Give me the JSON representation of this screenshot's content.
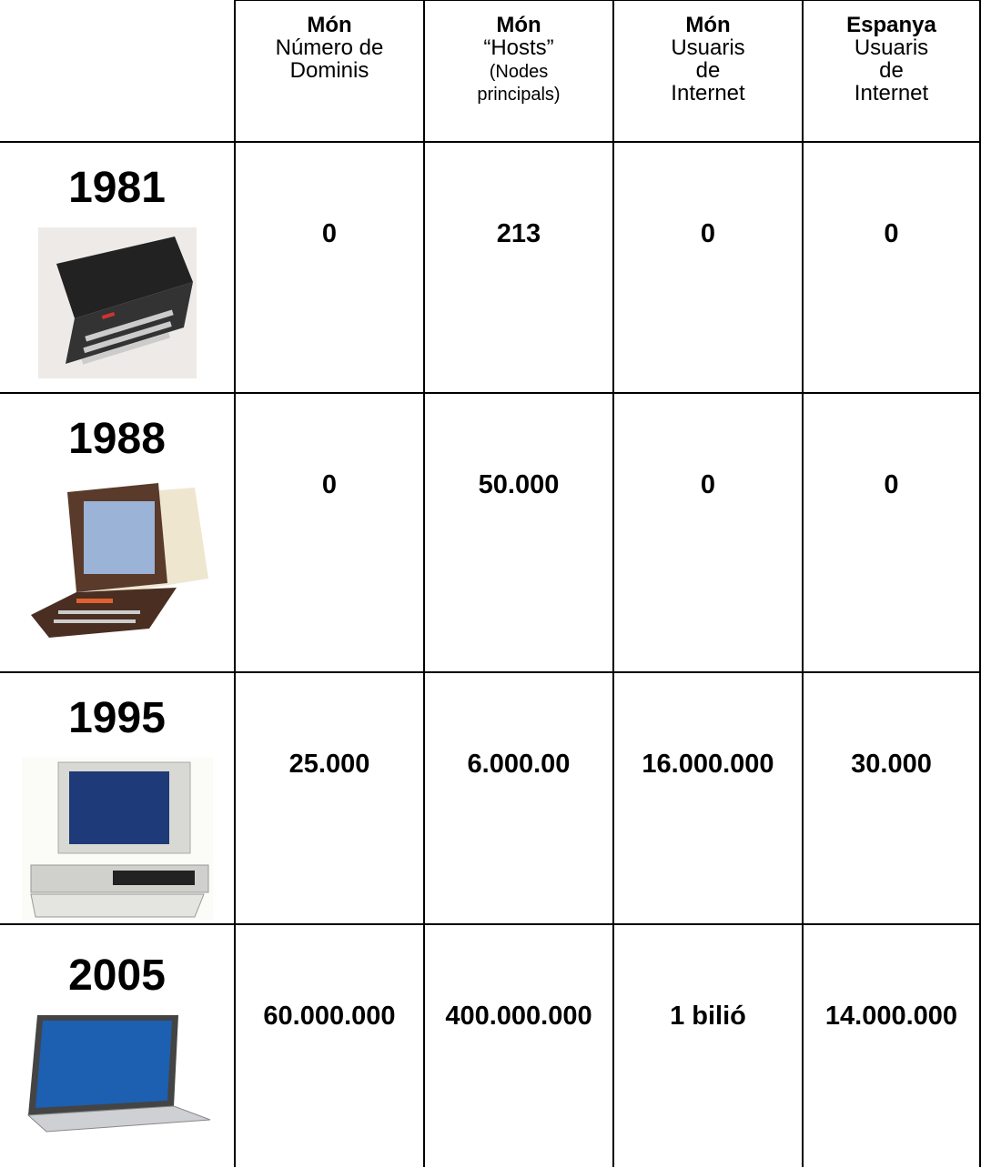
{
  "table": {
    "header": [
      {
        "title": "Món",
        "lines": [
          "Número de",
          "Dominis"
        ]
      },
      {
        "title": "Món",
        "lines": [
          "“Hosts”",
          "(Nodes",
          "principals)"
        ]
      },
      {
        "title": "Món",
        "lines": [
          "Usuaris",
          "de",
          "Internet"
        ]
      },
      {
        "title": "Espanya",
        "lines": [
          "Usuaris",
          "de",
          "Internet"
        ]
      }
    ],
    "rows": [
      {
        "year": "1981",
        "values": [
          "0",
          "213",
          "0",
          "0"
        ]
      },
      {
        "year": "1988",
        "values": [
          "0",
          "50.000",
          "0",
          "0"
        ]
      },
      {
        "year": "1995",
        "values": [
          "25.000",
          "6.000.00",
          "16.000.000",
          "30.000"
        ]
      },
      {
        "year": "2005",
        "values": [
          "60.000.000",
          "400.000.000",
          "1 bilió",
          "14.000.000"
        ]
      }
    ]
  }
}
